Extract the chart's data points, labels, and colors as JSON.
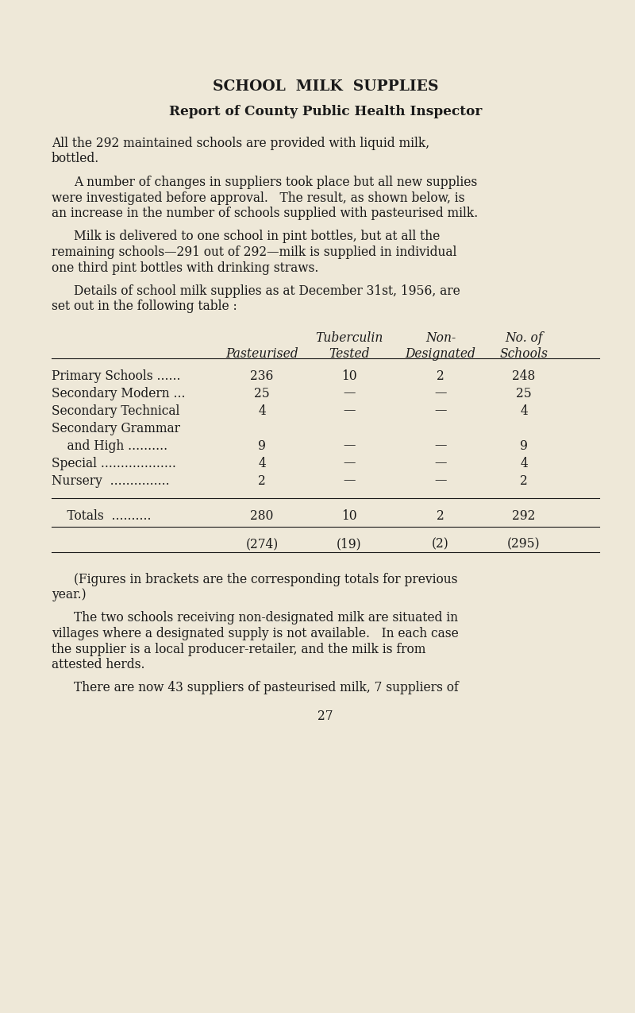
{
  "bg_color": "#eee8d8",
  "text_color": "#1a1a1a",
  "title": "SCHOOL  MILK  SUPPLIES",
  "subtitle": "Report of County Public Health Inspector",
  "para1_lines": [
    "All the 292 maintained schools are provided with liquid milk,",
    "bottled."
  ],
  "para1_indent": false,
  "para2_lines": [
    "A number of changes in suppliers took place but all new supplies",
    "were investigated before approval.   The result, as shown below, is",
    "an increase in the number of schools supplied with pasteurised milk."
  ],
  "para2_indent": true,
  "para3_lines": [
    "Milk is delivered to one school in pint bottles, but at all the",
    "remaining schools—291 out of 292—milk is supplied in individual",
    "one third pint bottles with drinking straws."
  ],
  "para3_indent": true,
  "para4_lines": [
    "Details of school milk supplies as at December 31st, 1956, are",
    "set out in the following table :"
  ],
  "para4_indent": true,
  "col_headers_line1": [
    "Tuberculin",
    "Non-",
    "No. of"
  ],
  "col_headers_line2": [
    "Pasteurised",
    "Tested",
    "Designated",
    "Schools"
  ],
  "rows": [
    [
      "Primary Schools ......",
      "236",
      "10",
      "2",
      "248"
    ],
    [
      "Secondary Modern ...",
      "25",
      "—",
      "—",
      "25"
    ],
    [
      "Secondary Technical",
      "4",
      "—",
      "—",
      "4"
    ],
    [
      "Secondary Grammar",
      "",
      "",
      "",
      ""
    ],
    [
      "    and High ..........",
      "9",
      "—",
      "—",
      "9"
    ],
    [
      "Special ...................",
      "4",
      "—",
      "—",
      "4"
    ],
    [
      "Nursery  ...............",
      "2",
      "—",
      "—",
      "2"
    ]
  ],
  "totals_row": [
    "    Totals  ..........",
    "280",
    "10",
    "2",
    "292"
  ],
  "prev_year_row": [
    "",
    "(274)",
    "(19)",
    "(2)",
    "(295)"
  ],
  "para5_lines": [
    "(Figures in brackets are the corresponding totals for previous",
    "year.)"
  ],
  "para5_indent": true,
  "para6_lines": [
    "The two schools receiving non-designated milk are situated in",
    "villages where a designated supply is not available.   In each case",
    "the supplier is a local producer-retailer, and the milk is from",
    "attested herds."
  ],
  "para6_indent": true,
  "para7": "There are now 43 suppliers of pasteurised milk, 7 suppliers of",
  "para7_indent": true,
  "page_number": "27",
  "font_size_body": 11.2,
  "font_size_title": 13.5,
  "font_size_subtitle": 12.2
}
